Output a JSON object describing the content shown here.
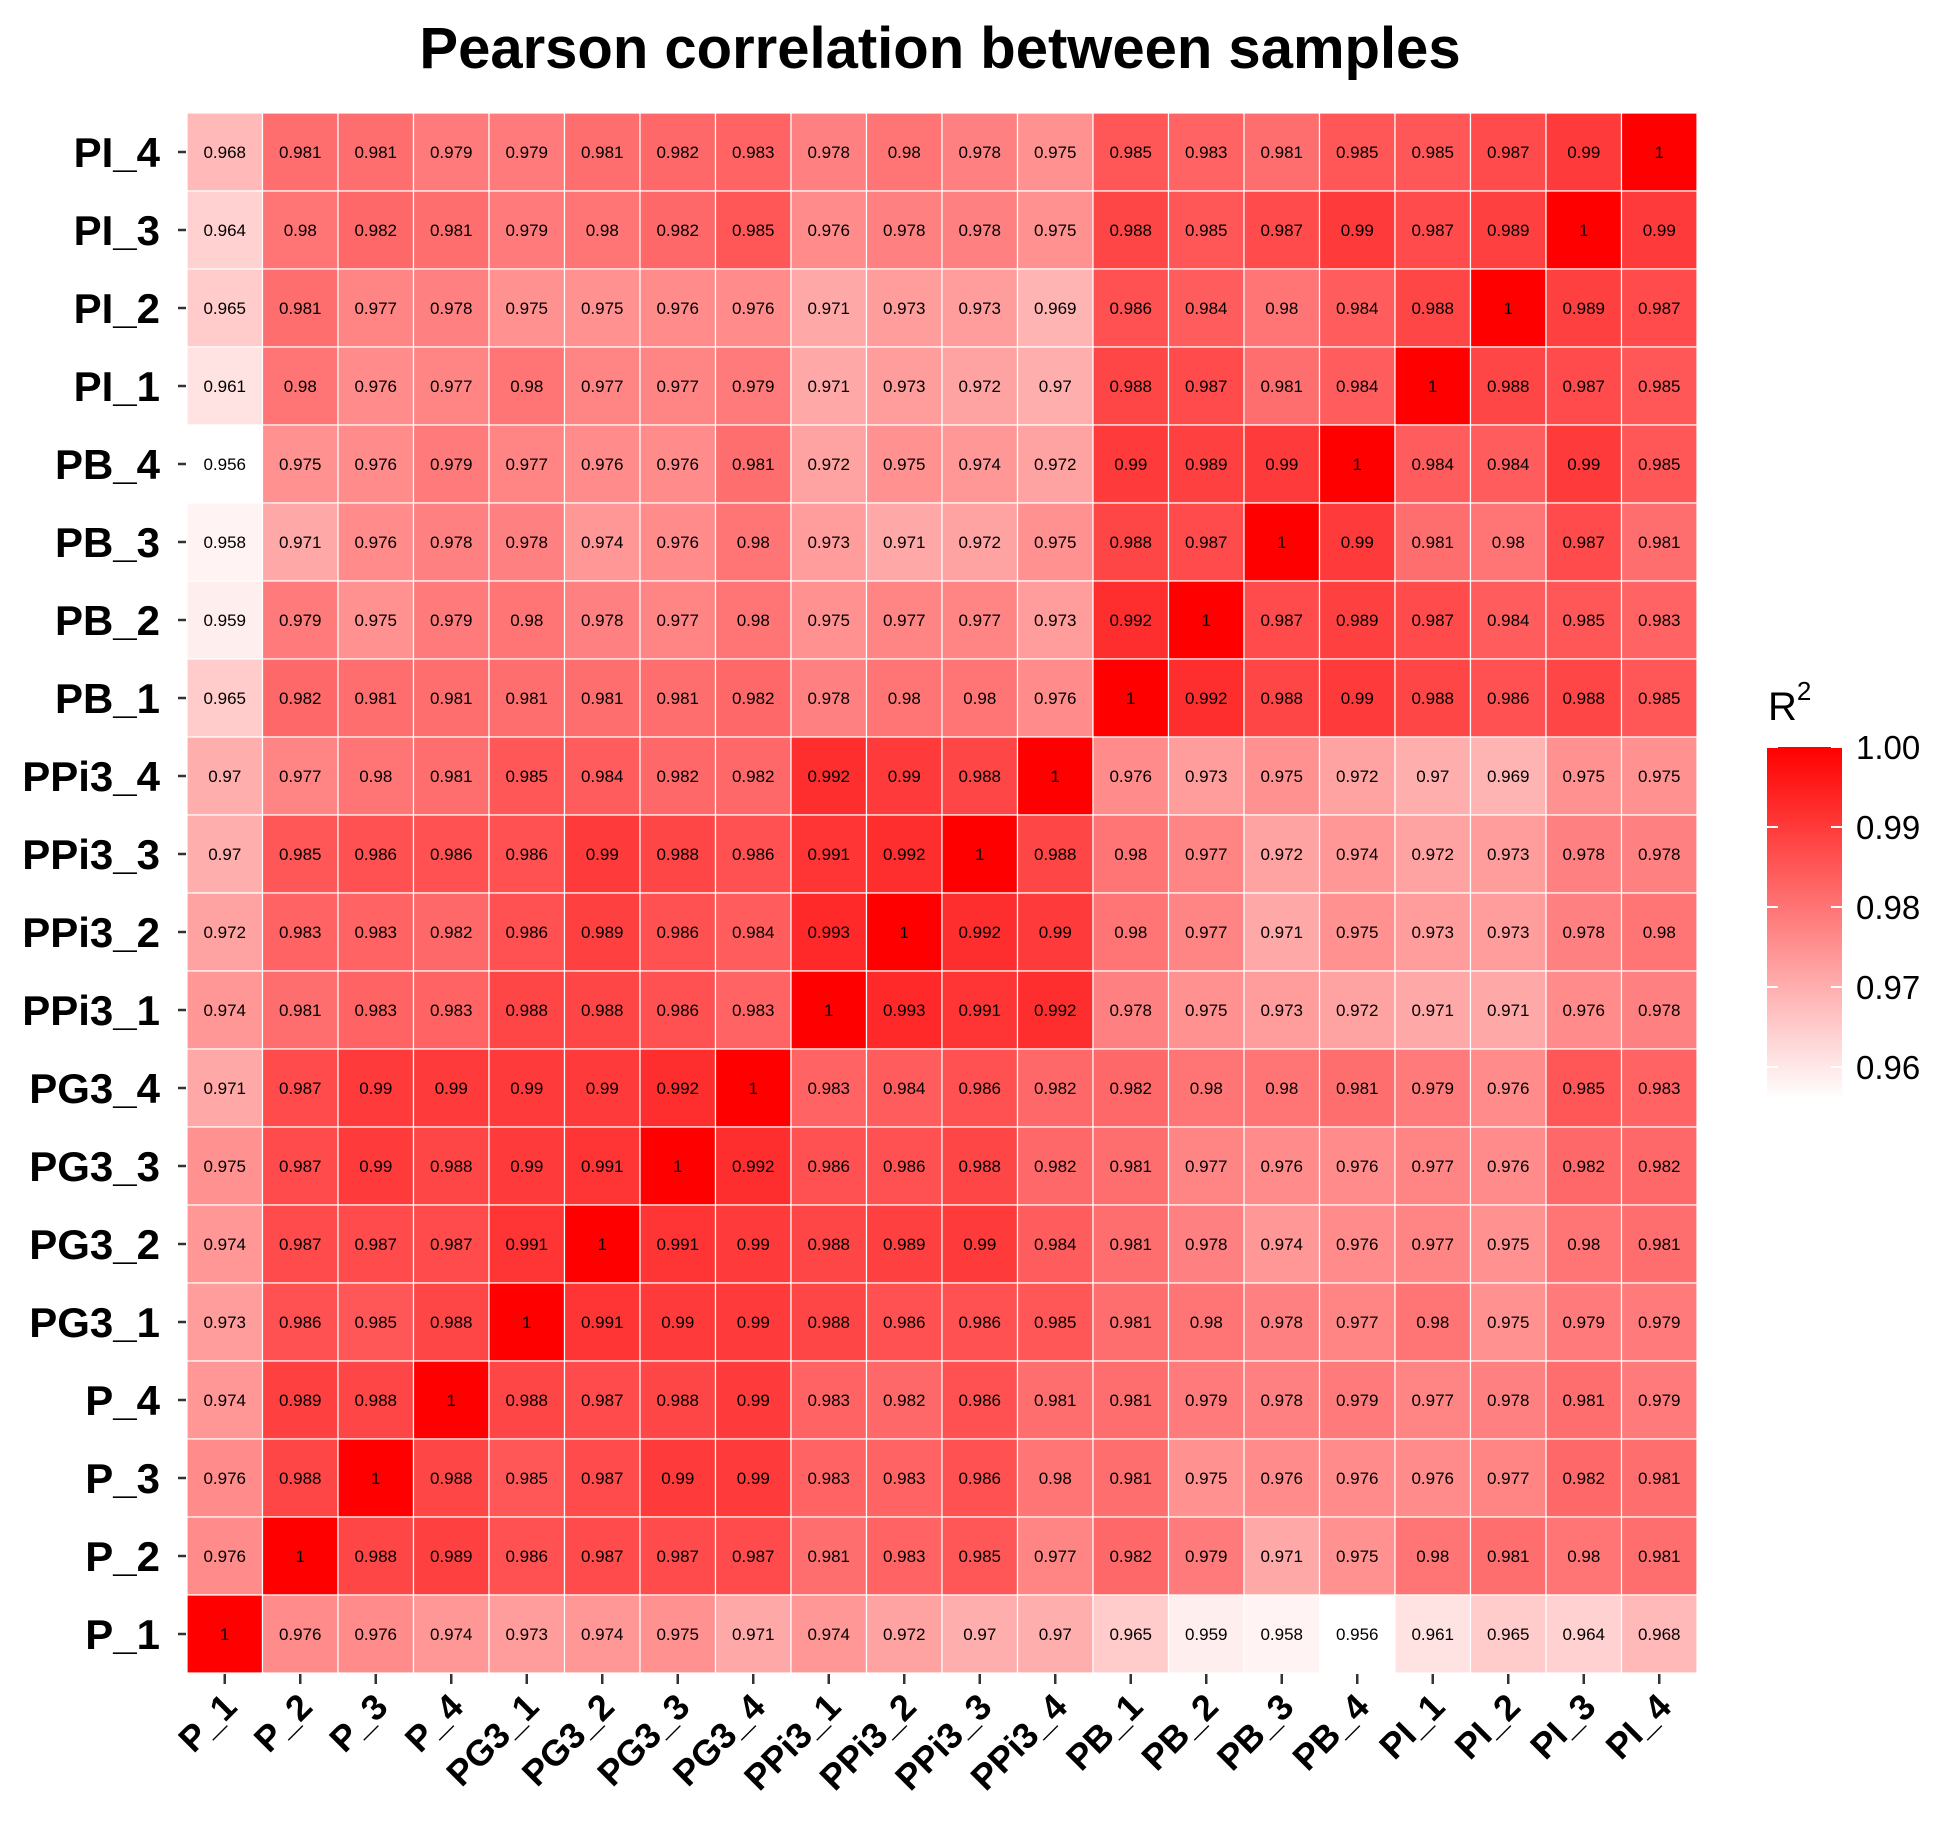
{
  "chart_data": {
    "type": "heatmap",
    "title": "Pearson correlation between samples",
    "rows_top_to_bottom": [
      "PI_4",
      "PI_3",
      "PI_2",
      "PI_1",
      "PB_4",
      "PB_3",
      "PB_2",
      "PB_1",
      "PPi3_4",
      "PPi3_3",
      "PPi3_2",
      "PPi3_1",
      "PG3_4",
      "PG3_3",
      "PG3_2",
      "PG3_1",
      "P_4",
      "P_3",
      "P_2",
      "P_1"
    ],
    "columns": [
      "P_1",
      "P_2",
      "P_3",
      "P_4",
      "PG3_1",
      "PG3_2",
      "PG3_3",
      "PG3_4",
      "PPi3_1",
      "PPi3_2",
      "PPi3_3",
      "PPi3_4",
      "PB_1",
      "PB_2",
      "PB_3",
      "PB_4",
      "PI_1",
      "PI_2",
      "PI_3",
      "PI_4"
    ],
    "values": [
      [
        "0.968",
        "0.981",
        "0.981",
        "0.979",
        "0.979",
        "0.981",
        "0.982",
        "0.983",
        "0.978",
        "0.98",
        "0.978",
        "0.975",
        "0.985",
        "0.983",
        "0.981",
        "0.985",
        "0.985",
        "0.987",
        "0.99",
        "1"
      ],
      [
        "0.964",
        "0.98",
        "0.982",
        "0.981",
        "0.979",
        "0.98",
        "0.982",
        "0.985",
        "0.976",
        "0.978",
        "0.978",
        "0.975",
        "0.988",
        "0.985",
        "0.987",
        "0.99",
        "0.987",
        "0.989",
        "1",
        "0.99"
      ],
      [
        "0.965",
        "0.981",
        "0.977",
        "0.978",
        "0.975",
        "0.975",
        "0.976",
        "0.976",
        "0.971",
        "0.973",
        "0.973",
        "0.969",
        "0.986",
        "0.984",
        "0.98",
        "0.984",
        "0.988",
        "1",
        "0.989",
        "0.987"
      ],
      [
        "0.961",
        "0.98",
        "0.976",
        "0.977",
        "0.98",
        "0.977",
        "0.977",
        "0.979",
        "0.971",
        "0.973",
        "0.972",
        "0.97",
        "0.988",
        "0.987",
        "0.981",
        "0.984",
        "1",
        "0.988",
        "0.987",
        "0.985"
      ],
      [
        "0.956",
        "0.975",
        "0.976",
        "0.979",
        "0.977",
        "0.976",
        "0.976",
        "0.981",
        "0.972",
        "0.975",
        "0.974",
        "0.972",
        "0.99",
        "0.989",
        "0.99",
        "1",
        "0.984",
        "0.984",
        "0.99",
        "0.985"
      ],
      [
        "0.958",
        "0.971",
        "0.976",
        "0.978",
        "0.978",
        "0.974",
        "0.976",
        "0.98",
        "0.973",
        "0.971",
        "0.972",
        "0.975",
        "0.988",
        "0.987",
        "1",
        "0.99",
        "0.981",
        "0.98",
        "0.987",
        "0.981"
      ],
      [
        "0.959",
        "0.979",
        "0.975",
        "0.979",
        "0.98",
        "0.978",
        "0.977",
        "0.98",
        "0.975",
        "0.977",
        "0.977",
        "0.973",
        "0.992",
        "1",
        "0.987",
        "0.989",
        "0.987",
        "0.984",
        "0.985",
        "0.983"
      ],
      [
        "0.965",
        "0.982",
        "0.981",
        "0.981",
        "0.981",
        "0.981",
        "0.981",
        "0.982",
        "0.978",
        "0.98",
        "0.98",
        "0.976",
        "1",
        "0.992",
        "0.988",
        "0.99",
        "0.988",
        "0.986",
        "0.988",
        "0.985"
      ],
      [
        "0.97",
        "0.977",
        "0.98",
        "0.981",
        "0.985",
        "0.984",
        "0.982",
        "0.982",
        "0.992",
        "0.99",
        "0.988",
        "1",
        "0.976",
        "0.973",
        "0.975",
        "0.972",
        "0.97",
        "0.969",
        "0.975",
        "0.975"
      ],
      [
        "0.97",
        "0.985",
        "0.986",
        "0.986",
        "0.986",
        "0.99",
        "0.988",
        "0.986",
        "0.991",
        "0.992",
        "1",
        "0.988",
        "0.98",
        "0.977",
        "0.972",
        "0.974",
        "0.972",
        "0.973",
        "0.978",
        "0.978"
      ],
      [
        "0.972",
        "0.983",
        "0.983",
        "0.982",
        "0.986",
        "0.989",
        "0.986",
        "0.984",
        "0.993",
        "1",
        "0.992",
        "0.99",
        "0.98",
        "0.977",
        "0.971",
        "0.975",
        "0.973",
        "0.973",
        "0.978",
        "0.98"
      ],
      [
        "0.974",
        "0.981",
        "0.983",
        "0.983",
        "0.988",
        "0.988",
        "0.986",
        "0.983",
        "1",
        "0.993",
        "0.991",
        "0.992",
        "0.978",
        "0.975",
        "0.973",
        "0.972",
        "0.971",
        "0.971",
        "0.976",
        "0.978"
      ],
      [
        "0.971",
        "0.987",
        "0.99",
        "0.99",
        "0.99",
        "0.99",
        "0.992",
        "1",
        "0.983",
        "0.984",
        "0.986",
        "0.982",
        "0.982",
        "0.98",
        "0.98",
        "0.981",
        "0.979",
        "0.976",
        "0.985",
        "0.983"
      ],
      [
        "0.975",
        "0.987",
        "0.99",
        "0.988",
        "0.99",
        "0.991",
        "1",
        "0.992",
        "0.986",
        "0.986",
        "0.988",
        "0.982",
        "0.981",
        "0.977",
        "0.976",
        "0.976",
        "0.977",
        "0.976",
        "0.982",
        "0.982"
      ],
      [
        "0.974",
        "0.987",
        "0.987",
        "0.987",
        "0.991",
        "1",
        "0.991",
        "0.99",
        "0.988",
        "0.989",
        "0.99",
        "0.984",
        "0.981",
        "0.978",
        "0.974",
        "0.976",
        "0.977",
        "0.975",
        "0.98",
        "0.981"
      ],
      [
        "0.973",
        "0.986",
        "0.985",
        "0.988",
        "1",
        "0.991",
        "0.99",
        "0.99",
        "0.988",
        "0.986",
        "0.986",
        "0.985",
        "0.981",
        "0.98",
        "0.978",
        "0.977",
        "0.98",
        "0.975",
        "0.979",
        "0.979"
      ],
      [
        "0.974",
        "0.989",
        "0.988",
        "1",
        "0.988",
        "0.987",
        "0.988",
        "0.99",
        "0.983",
        "0.982",
        "0.986",
        "0.981",
        "0.981",
        "0.979",
        "0.978",
        "0.979",
        "0.977",
        "0.978",
        "0.981",
        "0.979"
      ],
      [
        "0.976",
        "0.988",
        "1",
        "0.988",
        "0.985",
        "0.987",
        "0.99",
        "0.99",
        "0.983",
        "0.983",
        "0.986",
        "0.98",
        "0.981",
        "0.975",
        "0.976",
        "0.976",
        "0.976",
        "0.977",
        "0.982",
        "0.981"
      ],
      [
        "0.976",
        "1",
        "0.988",
        "0.989",
        "0.986",
        "0.987",
        "0.987",
        "0.987",
        "0.981",
        "0.983",
        "0.985",
        "0.977",
        "0.982",
        "0.979",
        "0.971",
        "0.975",
        "0.98",
        "0.981",
        "0.98",
        "0.981"
      ],
      [
        "1",
        "0.976",
        "0.976",
        "0.974",
        "0.973",
        "0.974",
        "0.975",
        "0.971",
        "0.974",
        "0.972",
        "0.97",
        "0.97",
        "0.965",
        "0.959",
        "0.958",
        "0.956",
        "0.961",
        "0.965",
        "0.964",
        "0.968"
      ]
    ],
    "color_scale": {
      "low_color": "#ffffff",
      "high_color": "#ff0000",
      "min": 0.956,
      "max": 1.0
    },
    "legend": {
      "title": "R",
      "title_superscript": "2",
      "position": "right",
      "ticks": [
        "1.00",
        "0.99",
        "0.98",
        "0.97",
        "0.96"
      ],
      "tick_values": [
        1.0,
        0.99,
        0.98,
        0.97,
        0.96
      ]
    }
  }
}
